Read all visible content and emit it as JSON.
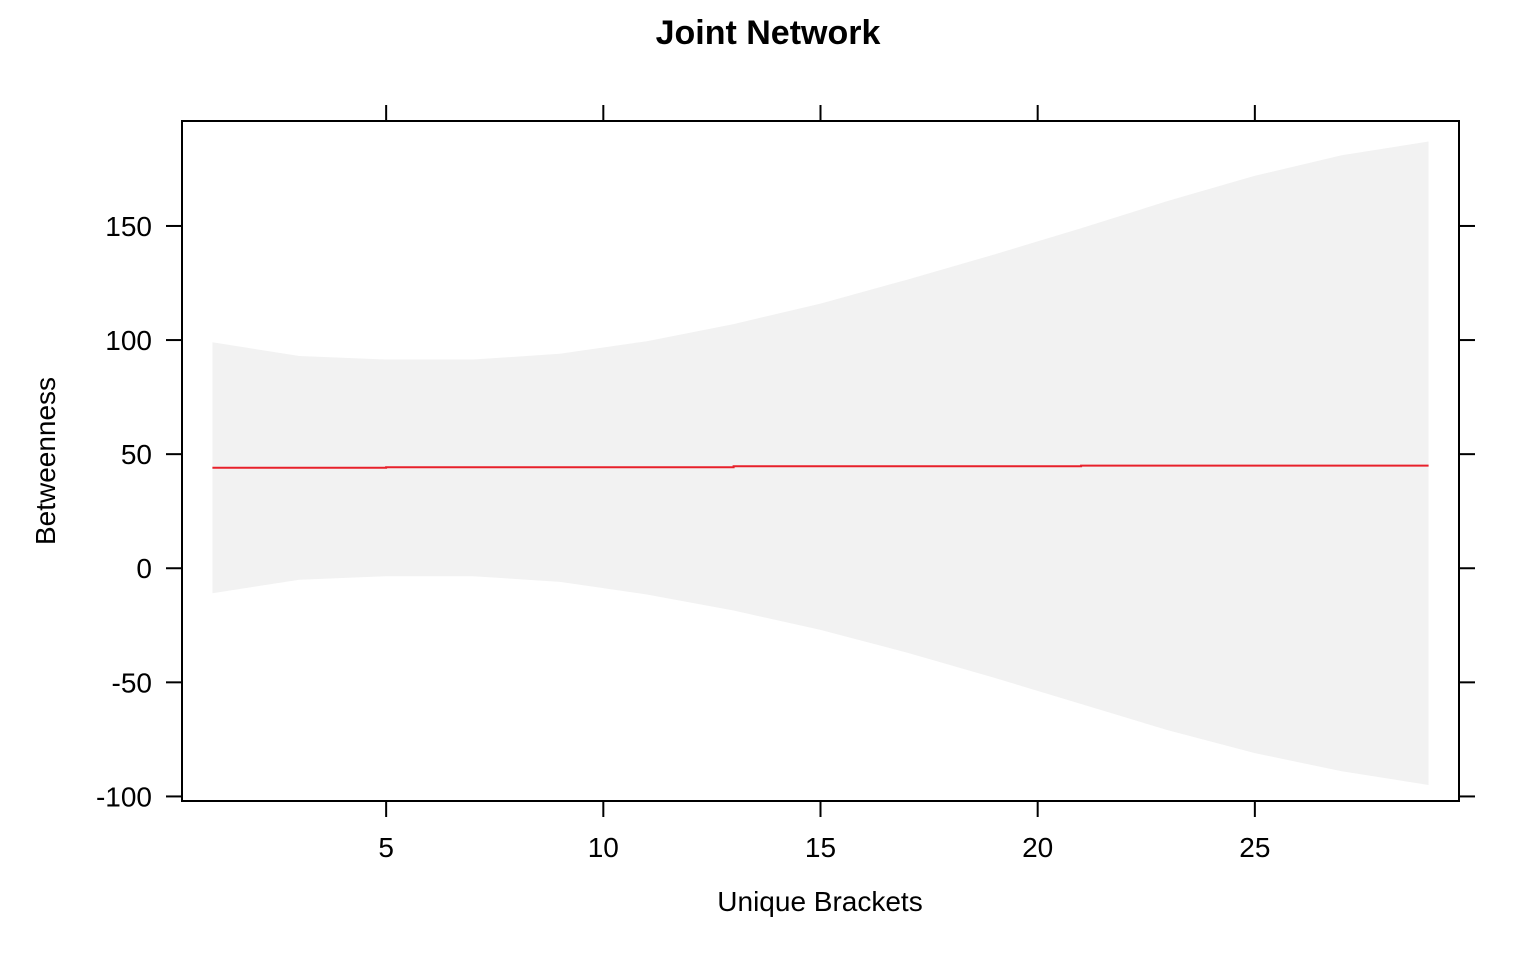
{
  "chart_data": {
    "type": "line",
    "title": "Joint Network",
    "xlabel": "Unique Brackets",
    "ylabel": "Betweenness",
    "xlim": [
      0.3,
      29.7
    ],
    "ylim": [
      -102,
      196
    ],
    "xticks": [
      5,
      10,
      15,
      20,
      25
    ],
    "yticks": [
      150,
      100,
      50,
      0,
      -50,
      -100
    ],
    "xtick_labels": [
      "5",
      "10",
      "15",
      "20",
      "25"
    ],
    "ytick_labels": [
      "150",
      "100",
      "50",
      "0",
      "-50",
      "-100"
    ],
    "grid": false,
    "legend": "none",
    "colors": {
      "fit": "#e8212b",
      "band": "#f2f2f2",
      "axis": "#000000"
    },
    "series": [
      {
        "x": [
          1,
          5,
          5,
          13,
          13,
          21,
          21,
          29
        ],
        "values": [
          44.0,
          44.0,
          44.3,
          44.3,
          44.7,
          44.7,
          45.0,
          45.0
        ]
      }
    ],
    "band": {
      "x": [
        1,
        3,
        5,
        7,
        9,
        11,
        13,
        15,
        17,
        19,
        21,
        23,
        25,
        27,
        29
      ],
      "upper": [
        99,
        93,
        91.5,
        91.5,
        94,
        99.5,
        107,
        116,
        126.5,
        137.5,
        149,
        161,
        172,
        181,
        187
      ],
      "lower": [
        -11,
        -5,
        -3.5,
        -3.5,
        -6,
        -11.5,
        -18.5,
        -27,
        -37,
        -48,
        -59.5,
        -71,
        -81,
        -89,
        -95
      ]
    }
  }
}
